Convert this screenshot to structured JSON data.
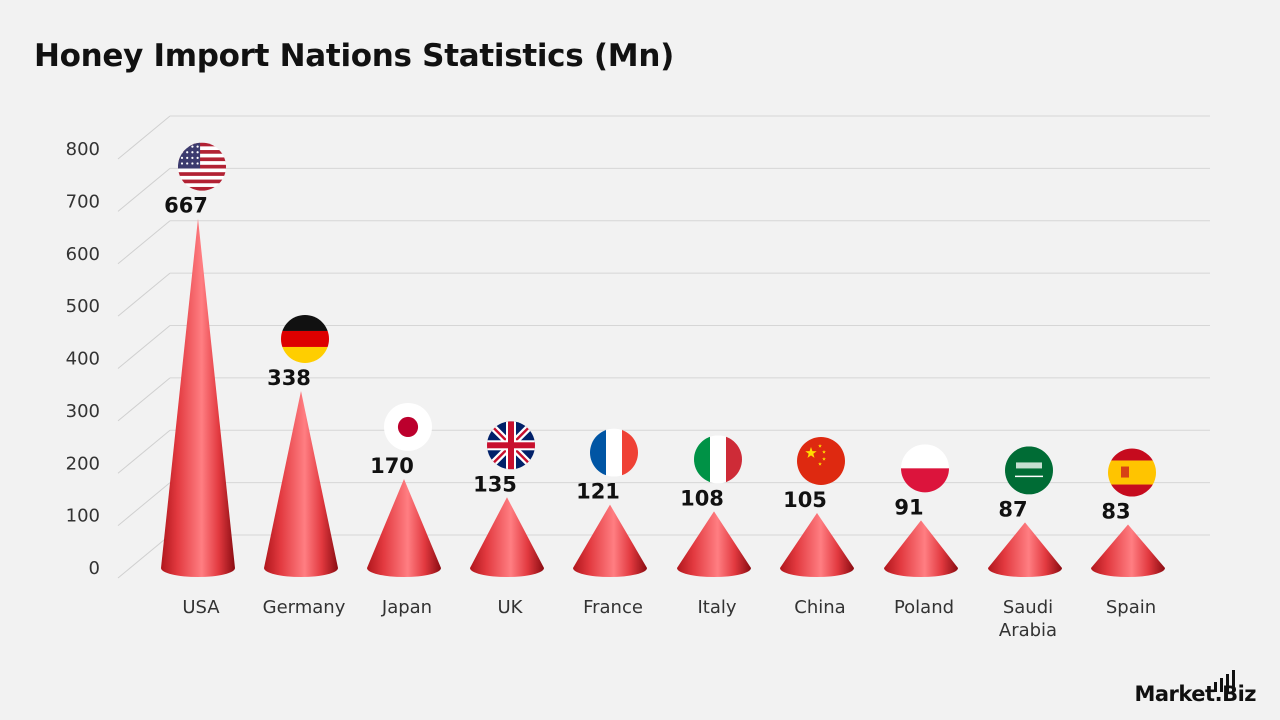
{
  "chart_data": {
    "type": "bar",
    "title": "Honey Import Nations Statistics (Mn)",
    "categories": [
      "USA",
      "Germany",
      "Japan",
      "UK",
      "France",
      "Italy",
      "China",
      "Poland",
      "Saudi Arabia",
      "Spain"
    ],
    "values": [
      667,
      338,
      170,
      135,
      121,
      108,
      105,
      91,
      87,
      83
    ],
    "ylim": [
      0,
      800
    ],
    "yticks": [
      "0",
      "100",
      "200",
      "300",
      "400",
      "500",
      "600",
      "700",
      "800"
    ],
    "grid": true,
    "bar_style": "cone",
    "bar_color": "#e8444a",
    "flags": [
      "us-flag-icon",
      "germany-flag-icon",
      "japan-flag-icon",
      "uk-flag-icon",
      "france-flag-icon",
      "italy-flag-icon",
      "china-flag-icon",
      "poland-flag-icon",
      "saudi-arabia-flag-icon",
      "spain-flag-icon"
    ]
  },
  "brand": {
    "name": "Market.Biz"
  }
}
